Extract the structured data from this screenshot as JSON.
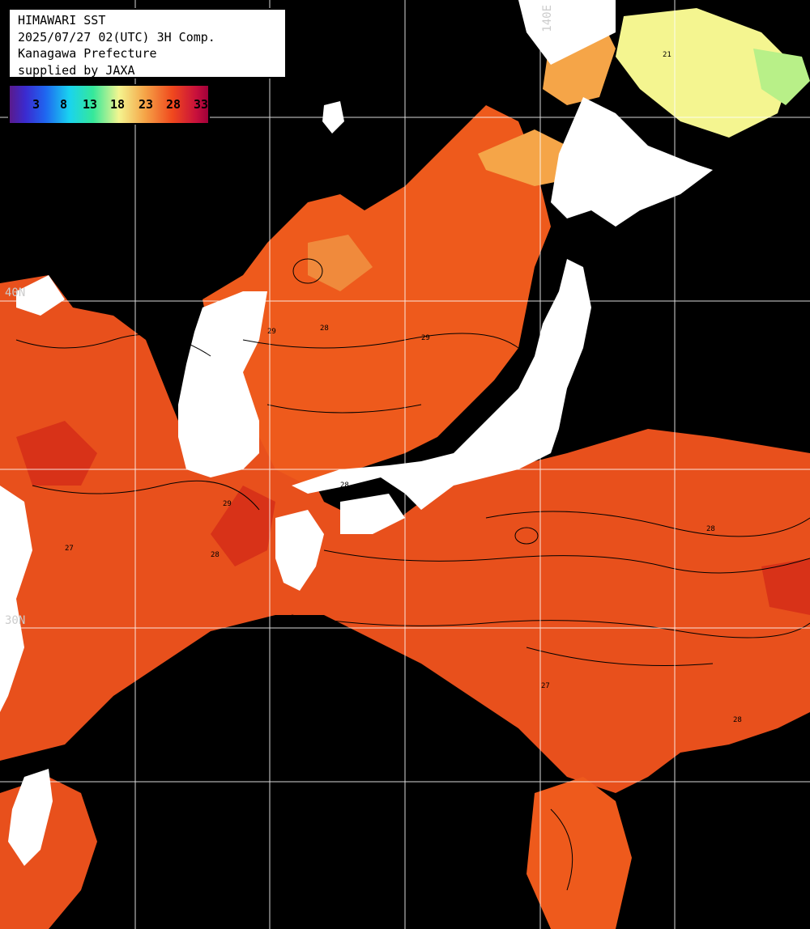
{
  "header": {
    "line1": "HIMAWARI SST",
    "line2": "2025/07/27 02(UTC) 3H Comp.",
    "line3": "Kanagawa Prefecture",
    "line4": "supplied by JAXA"
  },
  "legend": {
    "ticks": [
      "3",
      "8",
      "13",
      "18",
      "23",
      "28",
      "33"
    ]
  },
  "map_labels": {
    "lon_140": "140E",
    "lat_40": "40N",
    "lat_30": "30N"
  },
  "contour_labels": [
    "28",
    "29",
    "27",
    "28",
    "29",
    "28",
    "27",
    "28",
    "29",
    "28",
    "21"
  ],
  "colors": {
    "land": "#ffffff",
    "cloud": "#000000",
    "sst_warm": "#ee5a1c",
    "sst_hot": "#e0381a",
    "sst_cool": "#f5a548",
    "sst_cold": "#f4f590",
    "grid": "#ffffff"
  }
}
